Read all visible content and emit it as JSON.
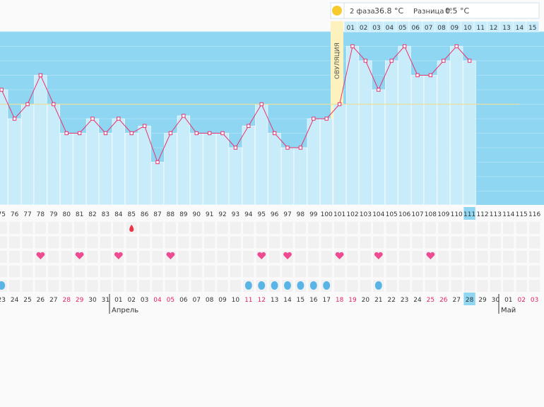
{
  "header": {
    "phase_label": "2 фаза",
    "phase_temp": "36.8 °C",
    "diff_label": "Разница t°",
    "diff_value": "0.5 °C"
  },
  "ovulation_label": "ОВУЛЯЦИЯ",
  "colors": {
    "sky": "#8fd6f2",
    "bar": "#c8ecfa",
    "line": "#e8336e",
    "ovulation": "#fdf2bd",
    "heart": "#ee4b90",
    "drop": "#5ab5e6",
    "blood": "#ee3344",
    "weekend": "#e3245a",
    "highlight": "#8fd6f2"
  },
  "month_labels": {
    "april": "Апрель",
    "may": "Май"
  },
  "chart_data": {
    "type": "line",
    "x": [
      "75",
      "76",
      "77",
      "78",
      "79",
      "80",
      "81",
      "82",
      "83",
      "84",
      "85",
      "86",
      "87",
      "88",
      "89",
      "90",
      "91",
      "92",
      "93",
      "94",
      "95",
      "96",
      "97",
      "98",
      "99",
      "100",
      "101",
      "102",
      "103",
      "104",
      "105",
      "106",
      "107",
      "108",
      "109",
      "110",
      "111"
    ],
    "y": [
      36.6,
      36.4,
      36.5,
      36.7,
      36.5,
      36.3,
      36.3,
      36.4,
      36.3,
      36.4,
      36.3,
      36.35,
      36.1,
      36.3,
      36.42,
      36.3,
      36.3,
      36.3,
      36.2,
      36.35,
      36.5,
      36.3,
      36.2,
      36.2,
      36.4,
      36.4,
      36.5,
      36.9,
      36.8,
      36.6,
      36.8,
      36.9,
      36.7,
      36.7,
      36.8,
      36.9,
      36.8
    ],
    "day_numbers": [
      "75",
      "76",
      "77",
      "78",
      "79",
      "80",
      "81",
      "82",
      "83",
      "84",
      "85",
      "86",
      "87",
      "88",
      "89",
      "90",
      "91",
      "92",
      "93",
      "94",
      "95",
      "96",
      "97",
      "98",
      "99",
      "100",
      "101",
      "102",
      "103",
      "104",
      "105",
      "106",
      "107",
      "108",
      "109",
      "110",
      "111",
      "112",
      "113",
      "114",
      "115",
      "116"
    ],
    "dates": [
      "23",
      "24",
      "25",
      "26",
      "27",
      "28",
      "29",
      "30",
      "31",
      "01",
      "02",
      "03",
      "04",
      "05",
      "06",
      "07",
      "08",
      "09",
      "10",
      "11",
      "12",
      "13",
      "14",
      "15",
      "16",
      "17",
      "18",
      "19",
      "20",
      "21",
      "22",
      "23",
      "24",
      "25",
      "26",
      "27",
      "28",
      "29",
      "30",
      "01",
      "02",
      "03"
    ],
    "weekend_dates_idx": [
      5,
      6,
      12,
      13,
      19,
      20,
      26,
      27,
      33,
      34,
      40,
      41
    ],
    "top_dates": [
      "01",
      "02",
      "03",
      "04",
      "05",
      "06",
      "07",
      "08",
      "09",
      "10",
      "11",
      "12",
      "13",
      "14",
      "15"
    ],
    "current_day": "111",
    "current_date": "28",
    "ovulation_day": "101",
    "coverline": 36.5,
    "hearts_idx": [
      3,
      6,
      9,
      13,
      20,
      22,
      26,
      29,
      33
    ],
    "drops_idx": [
      0,
      19,
      20,
      21,
      22,
      23,
      24,
      25,
      29
    ],
    "blood_idx": [
      10
    ]
  }
}
